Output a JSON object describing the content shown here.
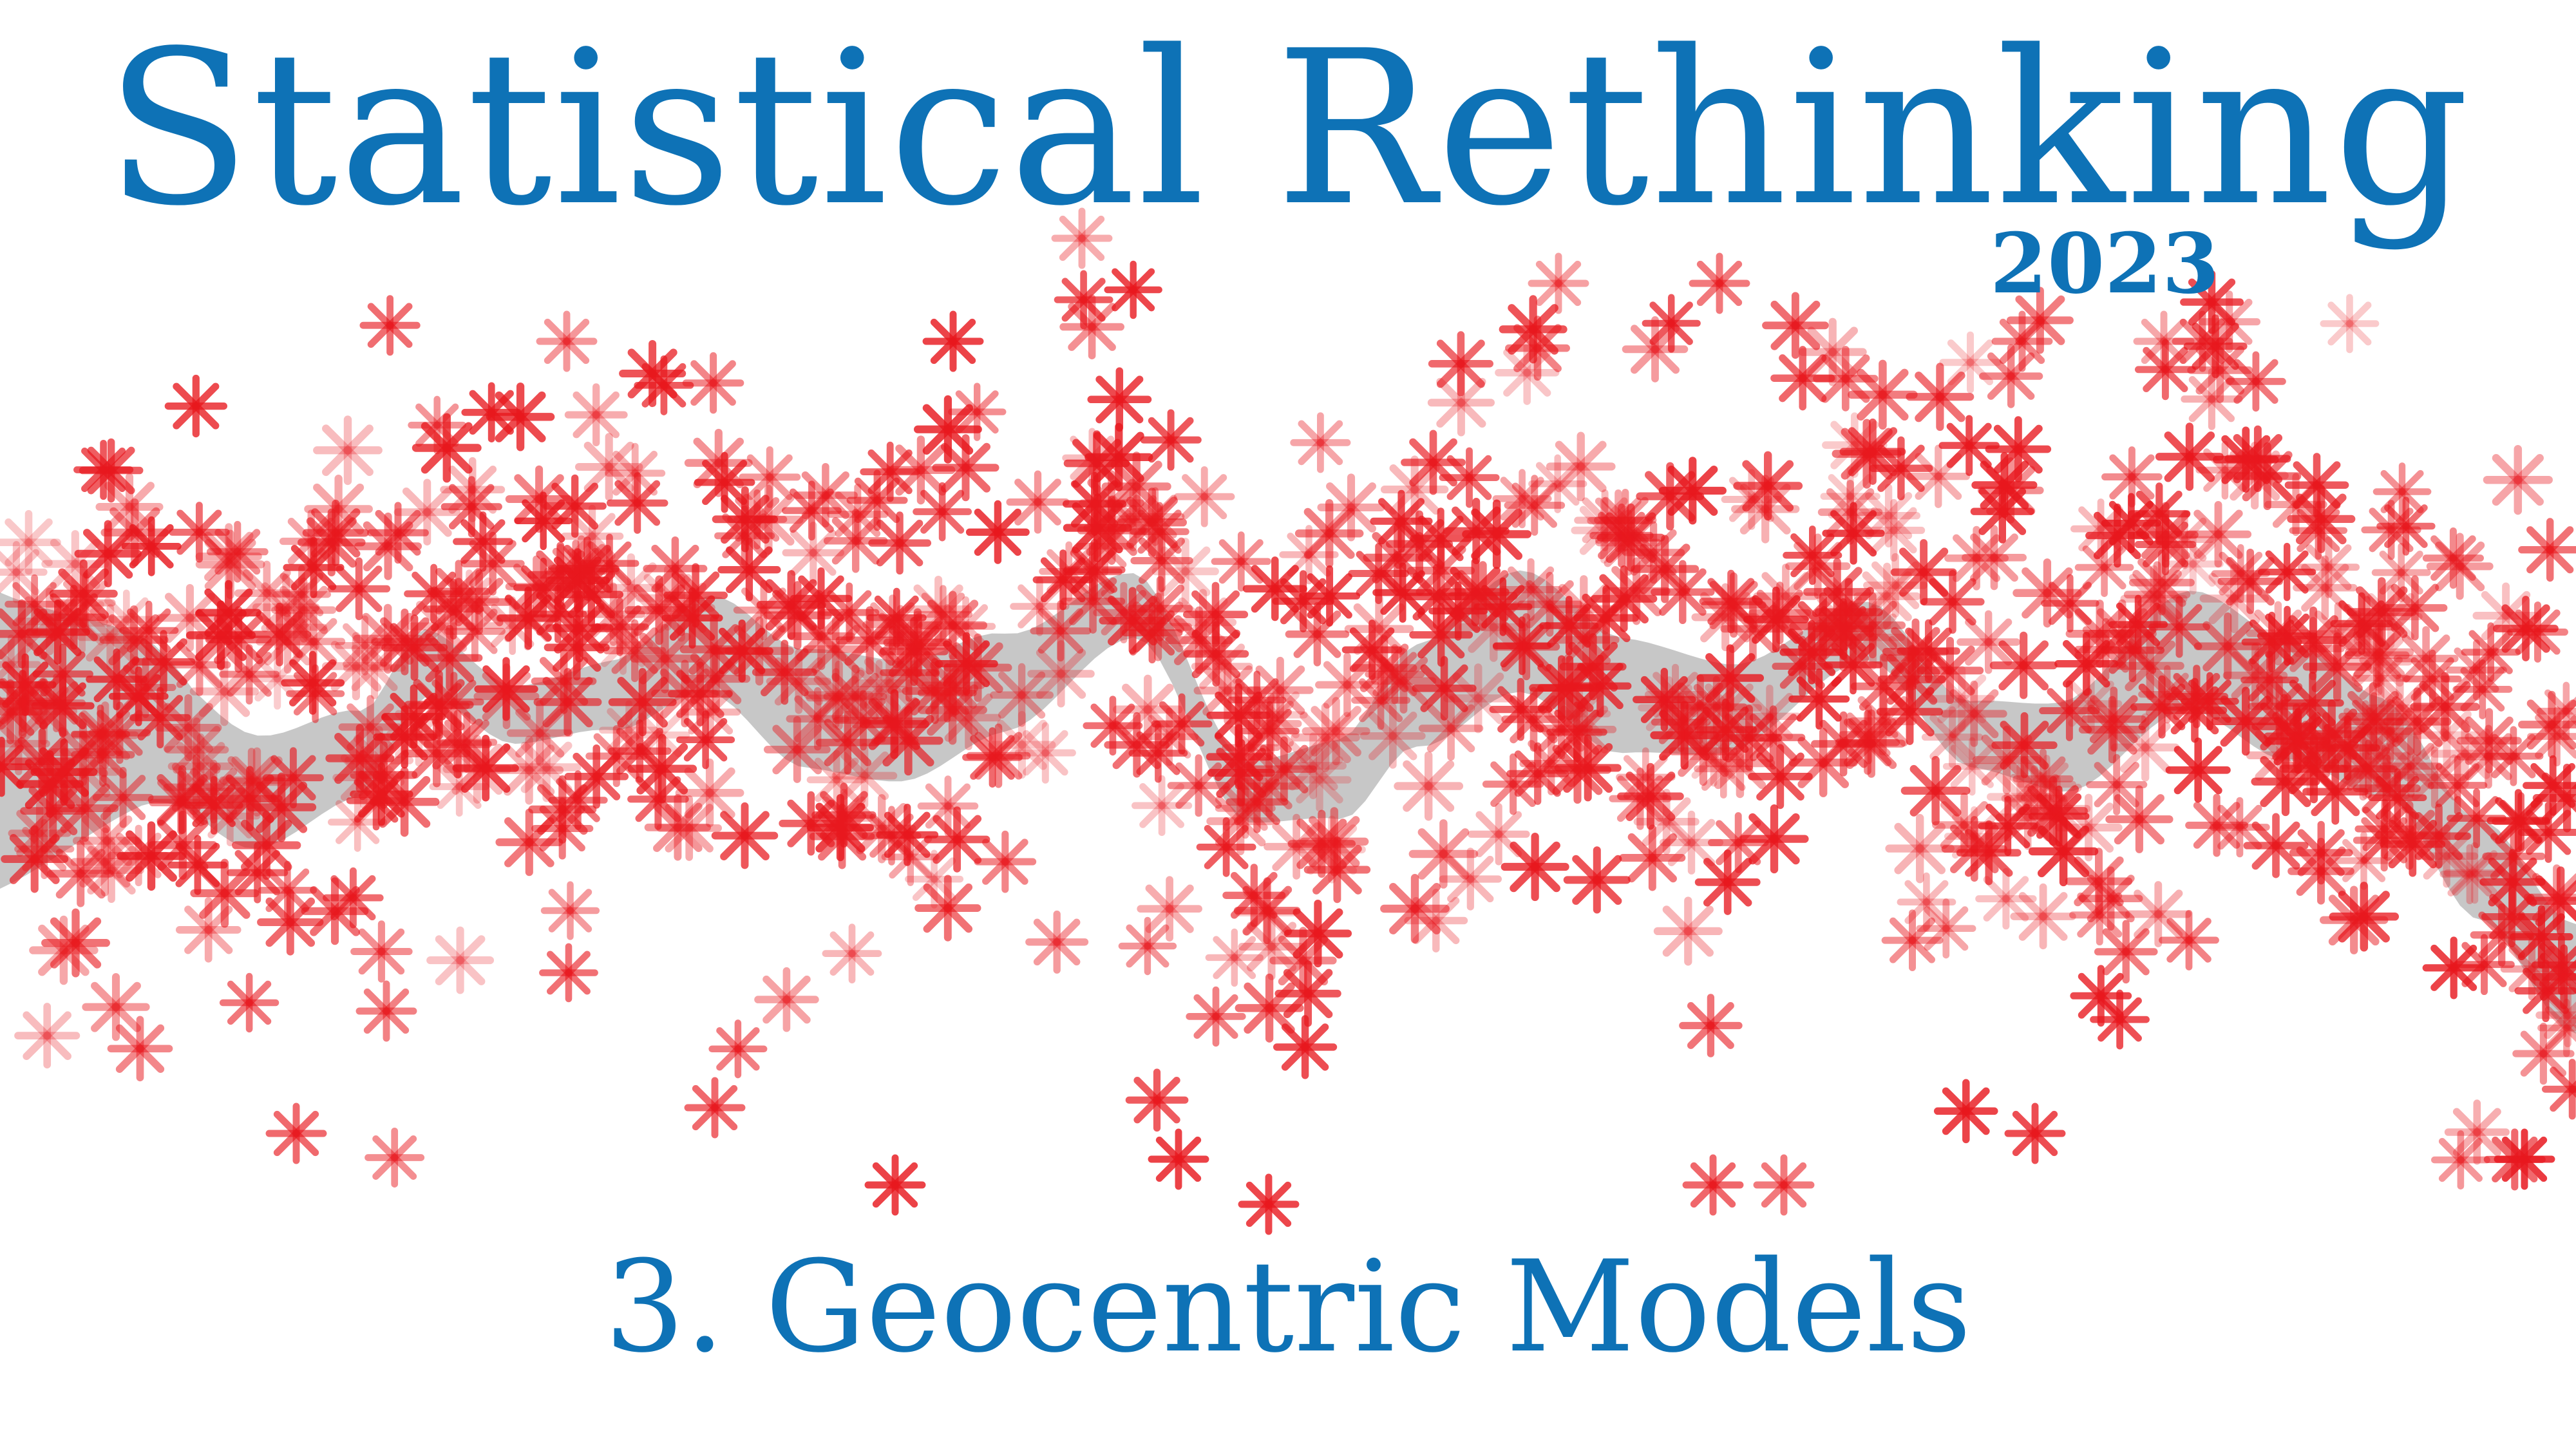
{
  "title": "Statistical Rethinking",
  "year": "2023",
  "subtitle": "3. Geocentric Models",
  "colors": {
    "text": "#0e72b6",
    "points": "#e8181e",
    "band": "#999999",
    "background": "#ffffff"
  },
  "icons": {
    "point_marker": "asterisk"
  }
}
